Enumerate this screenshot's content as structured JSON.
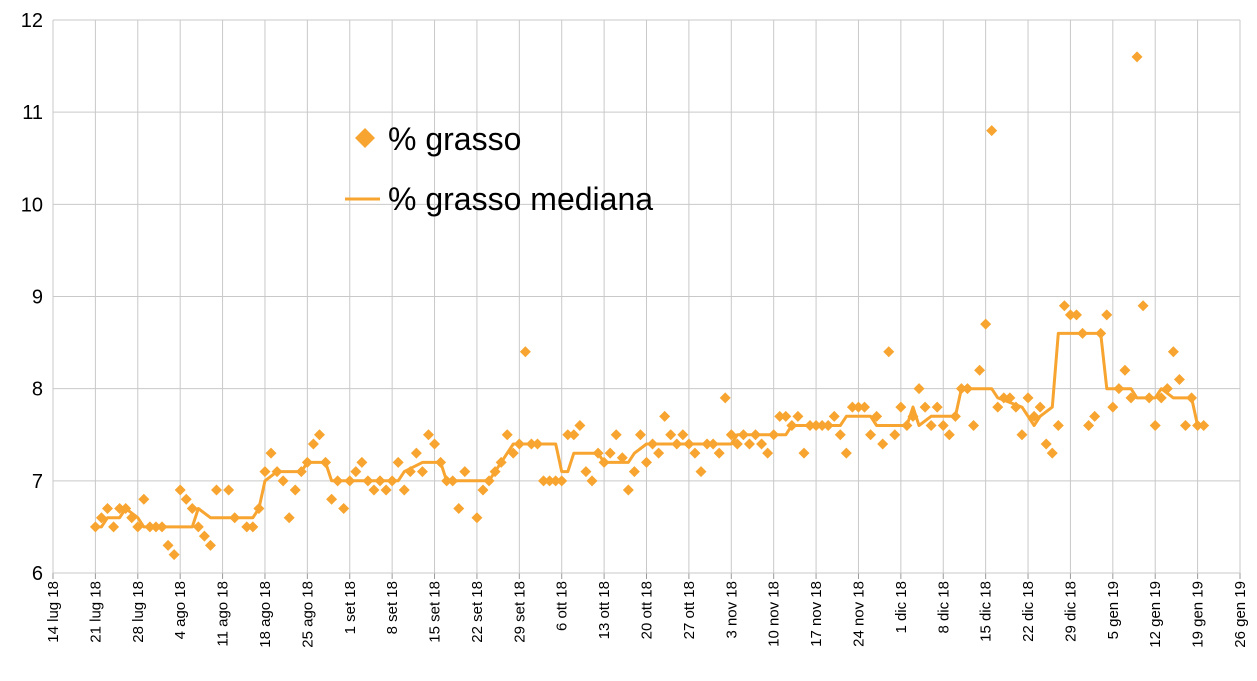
{
  "chart_data": {
    "type": "scatter",
    "title": "",
    "xlabel": "",
    "ylabel": "",
    "ylim": [
      6,
      12
    ],
    "yticks": [
      "6",
      "7",
      "8",
      "9",
      "10",
      "11",
      "12"
    ],
    "xlim": [
      "2018-07-14",
      "2019-01-26"
    ],
    "xticks": [
      {
        "date": "2018-07-14",
        "label": "14 lug 18"
      },
      {
        "date": "2018-07-21",
        "label": "21 lug 18"
      },
      {
        "date": "2018-07-28",
        "label": "28 lug 18"
      },
      {
        "date": "2018-08-04",
        "label": "4 ago 18"
      },
      {
        "date": "2018-08-11",
        "label": "11 ago 18"
      },
      {
        "date": "2018-08-18",
        "label": "18 ago 18"
      },
      {
        "date": "2018-08-25",
        "label": "25 ago 18"
      },
      {
        "date": "2018-09-01",
        "label": "1 set 18"
      },
      {
        "date": "2018-09-08",
        "label": "8 set 18"
      },
      {
        "date": "2018-09-15",
        "label": "15 set 18"
      },
      {
        "date": "2018-09-22",
        "label": "22 set 18"
      },
      {
        "date": "2018-09-29",
        "label": "29 set 18"
      },
      {
        "date": "2018-10-06",
        "label": "6 ott 18"
      },
      {
        "date": "2018-10-13",
        "label": "13 ott 18"
      },
      {
        "date": "2018-10-20",
        "label": "20 ott 18"
      },
      {
        "date": "2018-10-27",
        "label": "27 ott 18"
      },
      {
        "date": "2018-11-03",
        "label": "3 nov 18"
      },
      {
        "date": "2018-11-10",
        "label": "10 nov 18"
      },
      {
        "date": "2018-11-17",
        "label": "17 nov 18"
      },
      {
        "date": "2018-11-24",
        "label": "24 nov 18"
      },
      {
        "date": "2018-12-01",
        "label": "1 dic 18"
      },
      {
        "date": "2018-12-08",
        "label": "8 dic 18"
      },
      {
        "date": "2018-12-15",
        "label": "15 dic 18"
      },
      {
        "date": "2018-12-22",
        "label": "22 dic 18"
      },
      {
        "date": "2018-12-29",
        "label": "29 dic 18"
      },
      {
        "date": "2019-01-05",
        "label": "5 gen 19"
      },
      {
        "date": "2019-01-12",
        "label": "12 gen 19"
      },
      {
        "date": "2019-01-19",
        "label": "19 gen 19"
      },
      {
        "date": "2019-01-26",
        "label": "26 gen 19"
      }
    ],
    "grid": true,
    "legend_position": "upper-left-center",
    "color": "#F7A530",
    "series": [
      {
        "name": "% grasso",
        "kind": "scatter",
        "marker": "diamond",
        "points": [
          [
            "2018-07-21",
            6.5
          ],
          [
            "2018-07-22",
            6.6
          ],
          [
            "2018-07-23",
            6.7
          ],
          [
            "2018-07-24",
            6.5
          ],
          [
            "2018-07-25",
            6.7
          ],
          [
            "2018-07-26",
            6.7
          ],
          [
            "2018-07-27",
            6.6
          ],
          [
            "2018-07-28",
            6.5
          ],
          [
            "2018-07-29",
            6.8
          ],
          [
            "2018-07-30",
            6.5
          ],
          [
            "2018-07-31",
            6.5
          ],
          [
            "2018-08-01",
            6.5
          ],
          [
            "2018-08-02",
            6.3
          ],
          [
            "2018-08-03",
            6.2
          ],
          [
            "2018-08-04",
            6.9
          ],
          [
            "2018-08-05",
            6.8
          ],
          [
            "2018-08-06",
            6.7
          ],
          [
            "2018-08-07",
            6.5
          ],
          [
            "2018-08-08",
            6.4
          ],
          [
            "2018-08-09",
            6.3
          ],
          [
            "2018-08-10",
            6.9
          ],
          [
            "2018-08-12",
            6.9
          ],
          [
            "2018-08-13",
            6.6
          ],
          [
            "2018-08-15",
            6.5
          ],
          [
            "2018-08-16",
            6.5
          ],
          [
            "2018-08-17",
            6.7
          ],
          [
            "2018-08-18",
            7.1
          ],
          [
            "2018-08-19",
            7.3
          ],
          [
            "2018-08-20",
            7.1
          ],
          [
            "2018-08-21",
            7.0
          ],
          [
            "2018-08-22",
            6.6
          ],
          [
            "2018-08-23",
            6.9
          ],
          [
            "2018-08-24",
            7.1
          ],
          [
            "2018-08-25",
            7.2
          ],
          [
            "2018-08-26",
            7.4
          ],
          [
            "2018-08-27",
            7.5
          ],
          [
            "2018-08-28",
            7.2
          ],
          [
            "2018-08-29",
            6.8
          ],
          [
            "2018-08-30",
            7.0
          ],
          [
            "2018-08-31",
            6.7
          ],
          [
            "2018-09-01",
            7.0
          ],
          [
            "2018-09-02",
            7.1
          ],
          [
            "2018-09-03",
            7.2
          ],
          [
            "2018-09-04",
            7.0
          ],
          [
            "2018-09-05",
            6.9
          ],
          [
            "2018-09-06",
            7.0
          ],
          [
            "2018-09-07",
            6.9
          ],
          [
            "2018-09-08",
            7.0
          ],
          [
            "2018-09-09",
            7.2
          ],
          [
            "2018-09-10",
            6.9
          ],
          [
            "2018-09-11",
            7.1
          ],
          [
            "2018-09-12",
            7.3
          ],
          [
            "2018-09-13",
            7.1
          ],
          [
            "2018-09-14",
            7.5
          ],
          [
            "2018-09-15",
            7.4
          ],
          [
            "2018-09-16",
            7.2
          ],
          [
            "2018-09-17",
            7.0
          ],
          [
            "2018-09-18",
            7.0
          ],
          [
            "2018-09-19",
            6.7
          ],
          [
            "2018-09-20",
            7.1
          ],
          [
            "2018-09-22",
            6.6
          ],
          [
            "2018-09-23",
            6.9
          ],
          [
            "2018-09-24",
            7.0
          ],
          [
            "2018-09-25",
            7.1
          ],
          [
            "2018-09-26",
            7.2
          ],
          [
            "2018-09-27",
            7.5
          ],
          [
            "2018-09-28",
            7.3
          ],
          [
            "2018-09-29",
            7.4
          ],
          [
            "2018-09-30",
            8.4
          ],
          [
            "2018-10-01",
            7.4
          ],
          [
            "2018-10-02",
            7.4
          ],
          [
            "2018-10-03",
            7.0
          ],
          [
            "2018-10-04",
            7.0
          ],
          [
            "2018-10-05",
            7.0
          ],
          [
            "2018-10-06",
            7.0
          ],
          [
            "2018-10-07",
            7.5
          ],
          [
            "2018-10-08",
            7.5
          ],
          [
            "2018-10-09",
            7.6
          ],
          [
            "2018-10-10",
            7.1
          ],
          [
            "2018-10-11",
            7.0
          ],
          [
            "2018-10-12",
            7.3
          ],
          [
            "2018-10-13",
            7.2
          ],
          [
            "2018-10-14",
            7.3
          ],
          [
            "2018-10-15",
            7.5
          ],
          [
            "2018-10-16",
            7.25
          ],
          [
            "2018-10-17",
            6.9
          ],
          [
            "2018-10-18",
            7.1
          ],
          [
            "2018-10-19",
            7.5
          ],
          [
            "2018-10-20",
            7.2
          ],
          [
            "2018-10-21",
            7.4
          ],
          [
            "2018-10-22",
            7.3
          ],
          [
            "2018-10-23",
            7.7
          ],
          [
            "2018-10-24",
            7.5
          ],
          [
            "2018-10-25",
            7.4
          ],
          [
            "2018-10-26",
            7.5
          ],
          [
            "2018-10-27",
            7.4
          ],
          [
            "2018-10-28",
            7.3
          ],
          [
            "2018-10-29",
            7.1
          ],
          [
            "2018-10-30",
            7.4
          ],
          [
            "2018-10-31",
            7.4
          ],
          [
            "2018-11-01",
            7.3
          ],
          [
            "2018-11-02",
            7.9
          ],
          [
            "2018-11-03",
            7.5
          ],
          [
            "2018-11-04",
            7.4
          ],
          [
            "2018-11-05",
            7.5
          ],
          [
            "2018-11-06",
            7.4
          ],
          [
            "2018-11-07",
            7.5
          ],
          [
            "2018-11-08",
            7.4
          ],
          [
            "2018-11-09",
            7.3
          ],
          [
            "2018-11-10",
            7.5
          ],
          [
            "2018-11-11",
            7.7
          ],
          [
            "2018-11-12",
            7.7
          ],
          [
            "2018-11-13",
            7.6
          ],
          [
            "2018-11-14",
            7.7
          ],
          [
            "2018-11-15",
            7.3
          ],
          [
            "2018-11-16",
            7.6
          ],
          [
            "2018-11-17",
            7.6
          ],
          [
            "2018-11-18",
            7.6
          ],
          [
            "2018-11-19",
            7.6
          ],
          [
            "2018-11-20",
            7.7
          ],
          [
            "2018-11-21",
            7.5
          ],
          [
            "2018-11-22",
            7.3
          ],
          [
            "2018-11-23",
            7.8
          ],
          [
            "2018-11-24",
            7.8
          ],
          [
            "2018-11-25",
            7.8
          ],
          [
            "2018-11-26",
            7.5
          ],
          [
            "2018-11-27",
            7.7
          ],
          [
            "2018-11-28",
            7.4
          ],
          [
            "2018-11-29",
            8.4
          ],
          [
            "2018-11-30",
            7.5
          ],
          [
            "2018-12-01",
            7.8
          ],
          [
            "2018-12-02",
            7.6
          ],
          [
            "2018-12-03",
            7.7
          ],
          [
            "2018-12-04",
            8.0
          ],
          [
            "2018-12-05",
            7.8
          ],
          [
            "2018-12-06",
            7.6
          ],
          [
            "2018-12-07",
            7.8
          ],
          [
            "2018-12-08",
            7.6
          ],
          [
            "2018-12-09",
            7.5
          ],
          [
            "2018-12-10",
            7.7
          ],
          [
            "2018-12-11",
            8.0
          ],
          [
            "2018-12-12",
            8.0
          ],
          [
            "2018-12-13",
            7.6
          ],
          [
            "2018-12-14",
            8.2
          ],
          [
            "2018-12-15",
            8.7
          ],
          [
            "2018-12-16",
            10.8
          ],
          [
            "2018-12-17",
            7.8
          ],
          [
            "2018-12-18",
            7.9
          ],
          [
            "2018-12-19",
            7.9
          ],
          [
            "2018-12-20",
            7.8
          ],
          [
            "2018-12-21",
            7.5
          ],
          [
            "2018-12-22",
            7.9
          ],
          [
            "2018-12-23",
            7.7
          ],
          [
            "2018-12-24",
            7.8
          ],
          [
            "2018-12-25",
            7.4
          ],
          [
            "2018-12-26",
            7.3
          ],
          [
            "2018-12-27",
            7.6
          ],
          [
            "2018-12-28",
            8.9
          ],
          [
            "2018-12-29",
            8.8
          ],
          [
            "2018-12-30",
            8.8
          ],
          [
            "2018-12-31",
            8.6
          ],
          [
            "2019-01-01",
            7.6
          ],
          [
            "2019-01-02",
            7.7
          ],
          [
            "2019-01-03",
            8.6
          ],
          [
            "2019-01-04",
            8.8
          ],
          [
            "2019-01-05",
            7.8
          ],
          [
            "2019-01-06",
            8.0
          ],
          [
            "2019-01-07",
            8.2
          ],
          [
            "2019-01-08",
            7.9
          ],
          [
            "2019-01-09",
            11.6
          ],
          [
            "2019-01-10",
            8.9
          ],
          [
            "2019-01-11",
            7.9
          ],
          [
            "2019-01-12",
            7.6
          ],
          [
            "2019-01-13",
            7.9
          ],
          [
            "2019-01-14",
            8.0
          ],
          [
            "2019-01-15",
            8.4
          ],
          [
            "2019-01-16",
            8.1
          ],
          [
            "2019-01-17",
            7.6
          ],
          [
            "2019-01-18",
            7.9
          ],
          [
            "2019-01-19",
            7.6
          ],
          [
            "2019-01-20",
            7.6
          ]
        ]
      },
      {
        "name": "% grasso mediana",
        "kind": "line",
        "points": [
          [
            "2018-07-21",
            6.5
          ],
          [
            "2018-07-22",
            6.5
          ],
          [
            "2018-07-23",
            6.6
          ],
          [
            "2018-07-25",
            6.6
          ],
          [
            "2018-07-26",
            6.7
          ],
          [
            "2018-07-28",
            6.6
          ],
          [
            "2018-07-29",
            6.5
          ],
          [
            "2018-08-06",
            6.5
          ],
          [
            "2018-08-07",
            6.7
          ],
          [
            "2018-08-09",
            6.6
          ],
          [
            "2018-08-16",
            6.6
          ],
          [
            "2018-08-17",
            6.7
          ],
          [
            "2018-08-18",
            7.0
          ],
          [
            "2018-08-20",
            7.1
          ],
          [
            "2018-08-24",
            7.1
          ],
          [
            "2018-08-25",
            7.2
          ],
          [
            "2018-08-27",
            7.2
          ],
          [
            "2018-08-28",
            7.2
          ],
          [
            "2018-08-29",
            7.0
          ],
          [
            "2018-09-09",
            7.0
          ],
          [
            "2018-09-10",
            7.1
          ],
          [
            "2018-09-13",
            7.2
          ],
          [
            "2018-09-16",
            7.2
          ],
          [
            "2018-09-17",
            7.0
          ],
          [
            "2018-09-24",
            7.0
          ],
          [
            "2018-09-25",
            7.1
          ],
          [
            "2018-09-26",
            7.2
          ],
          [
            "2018-09-27",
            7.3
          ],
          [
            "2018-09-28",
            7.4
          ],
          [
            "2018-10-05",
            7.4
          ],
          [
            "2018-10-06",
            7.1
          ],
          [
            "2018-10-07",
            7.1
          ],
          [
            "2018-10-08",
            7.3
          ],
          [
            "2018-10-12",
            7.3
          ],
          [
            "2018-10-13",
            7.2
          ],
          [
            "2018-10-17",
            7.2
          ],
          [
            "2018-10-18",
            7.3
          ],
          [
            "2018-10-20",
            7.4
          ],
          [
            "2018-11-03",
            7.4
          ],
          [
            "2018-11-04",
            7.5
          ],
          [
            "2018-11-12",
            7.5
          ],
          [
            "2018-11-13",
            7.6
          ],
          [
            "2018-11-21",
            7.6
          ],
          [
            "2018-11-22",
            7.7
          ],
          [
            "2018-11-26",
            7.7
          ],
          [
            "2018-11-27",
            7.6
          ],
          [
            "2018-12-02",
            7.6
          ],
          [
            "2018-12-03",
            7.8
          ],
          [
            "2018-12-04",
            7.6
          ],
          [
            "2018-12-06",
            7.7
          ],
          [
            "2018-12-10",
            7.7
          ],
          [
            "2018-12-11",
            8.0
          ],
          [
            "2018-12-16",
            8.0
          ],
          [
            "2018-12-17",
            7.9
          ],
          [
            "2018-12-21",
            7.8
          ],
          [
            "2018-12-23",
            7.6
          ],
          [
            "2018-12-24",
            7.7
          ],
          [
            "2018-12-26",
            7.8
          ],
          [
            "2018-12-27",
            8.6
          ],
          [
            "2019-01-03",
            8.6
          ],
          [
            "2019-01-04",
            8.0
          ],
          [
            "2019-01-08",
            8.0
          ],
          [
            "2019-01-09",
            7.9
          ],
          [
            "2019-01-12",
            7.9
          ],
          [
            "2019-01-13",
            8.0
          ],
          [
            "2019-01-15",
            7.9
          ],
          [
            "2019-01-18",
            7.9
          ],
          [
            "2019-01-19",
            7.6
          ],
          [
            "2019-01-20",
            7.6
          ]
        ]
      }
    ]
  }
}
